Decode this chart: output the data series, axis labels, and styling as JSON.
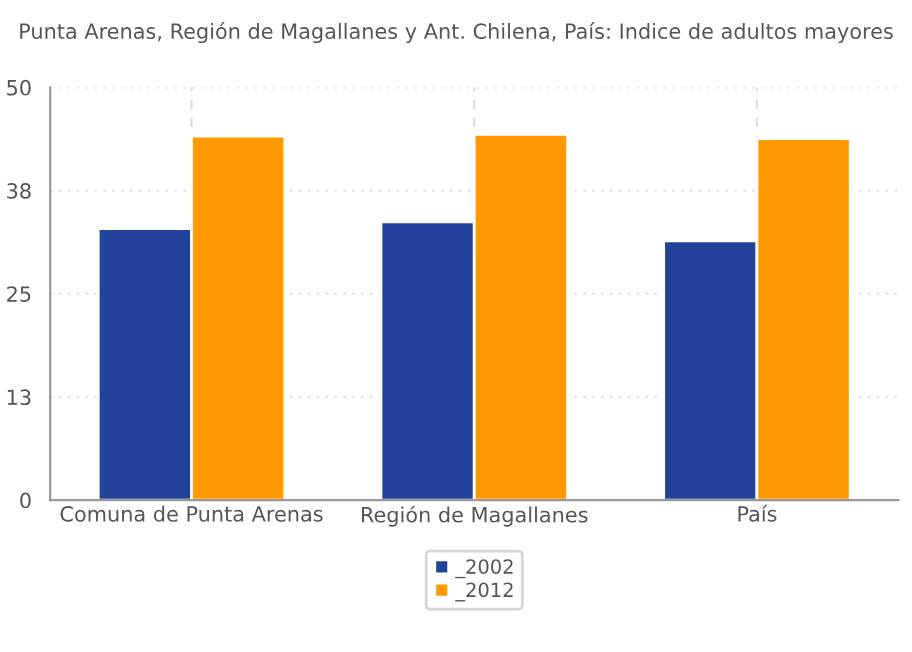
{
  "chart_data": {
    "type": "bar",
    "title": "Punta Arenas, Región de Magallanes y Ant. Chilena, País: Indice de adultos mayores",
    "categories": [
      "Comuna de Punta Arenas",
      "Región de Magallanes",
      "País"
    ],
    "series": [
      {
        "name": "_2002",
        "color": "#21449a",
        "values": [
          32.9,
          33.7,
          31.4
        ]
      },
      {
        "name": "_2012",
        "color": "#ff9900",
        "values": [
          44.1,
          44.3,
          43.8
        ]
      }
    ],
    "ylim": [
      0,
      50
    ],
    "yticks": [
      0,
      {
        "value": 12.5,
        "label": "13"
      },
      25,
      {
        "value": 37.5,
        "label": "38"
      },
      50
    ],
    "grid": true,
    "legend": "bottom"
  }
}
